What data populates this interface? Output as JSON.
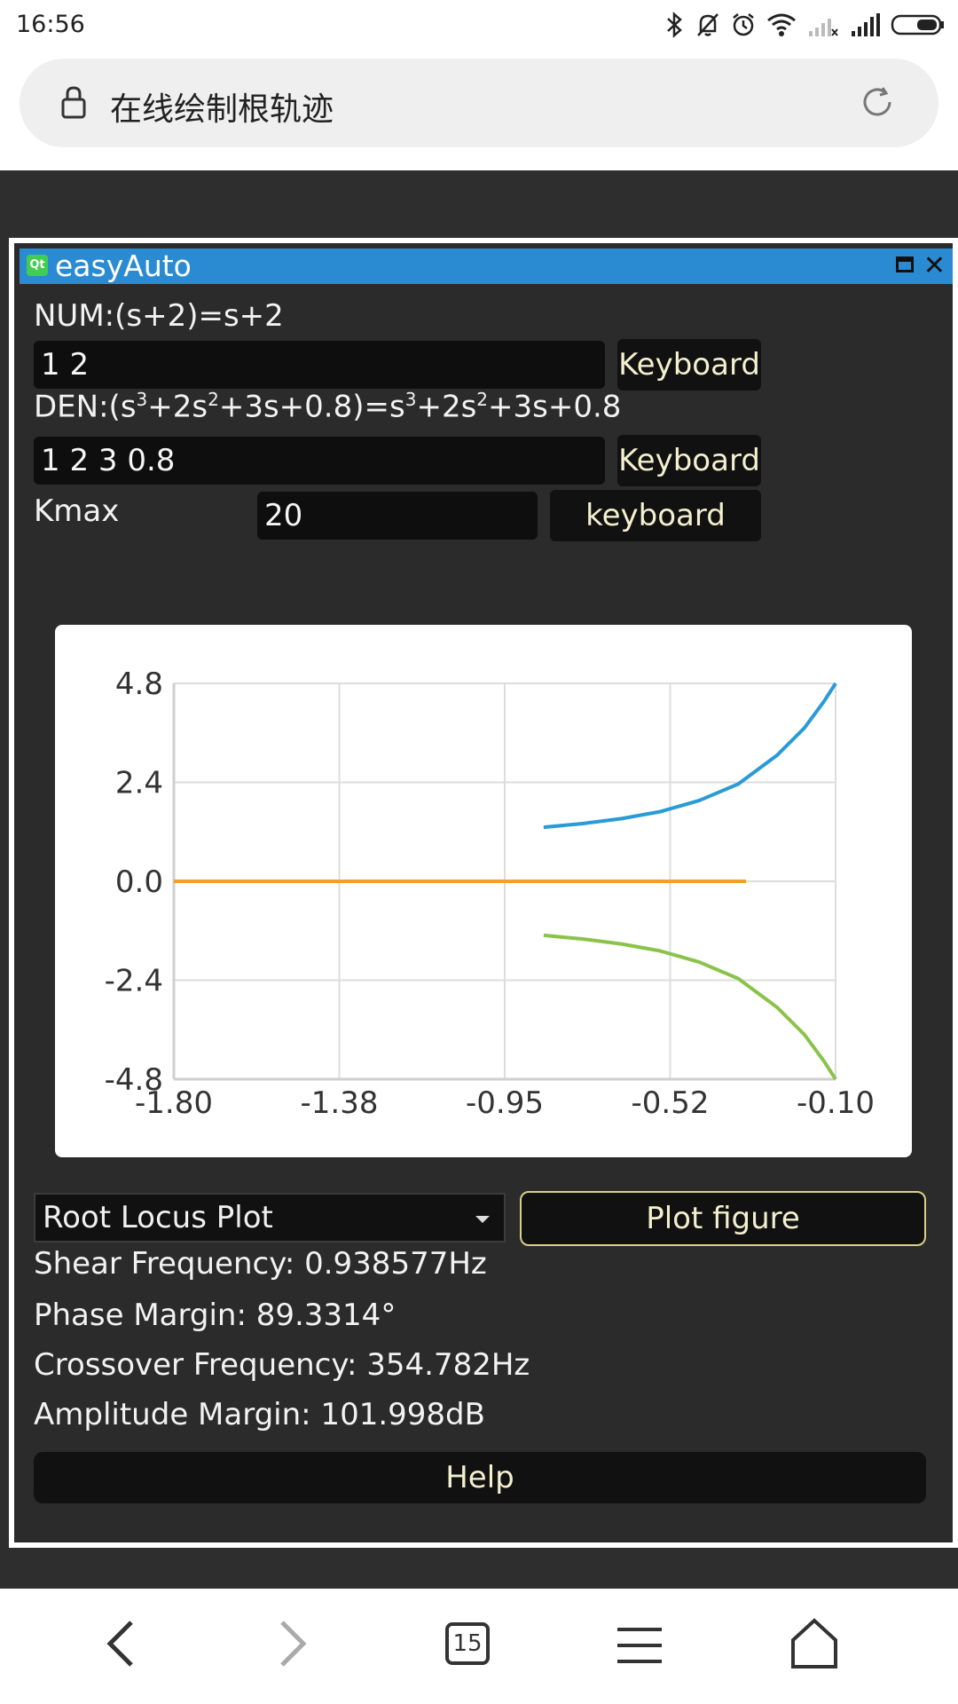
{
  "status_bar": {
    "time": "16:56"
  },
  "address_bar": {
    "url_text": "在线绘制根轨迹"
  },
  "window": {
    "title": "easyAuto"
  },
  "form": {
    "num_label": "NUM:(s+2)=s+2",
    "num_value": "1 2",
    "num_keyboard": "Keyboard",
    "den_label_parts": [
      "DEN:(s",
      "3",
      "+2s",
      "2",
      "+3s+0.8)=s",
      "3",
      "+2s",
      "2",
      "+3s+0.8"
    ],
    "den_value": "1 2 3 0.8",
    "den_keyboard": "Keyboard",
    "kmax_label": "Kmax",
    "kmax_value": "20",
    "kmax_keyboard": "keyboard"
  },
  "chart_data": {
    "type": "line",
    "title": "",
    "xlabel": "",
    "ylabel": "",
    "xlim": [
      -1.8,
      -0.1
    ],
    "ylim": [
      -4.8,
      4.8
    ],
    "x_ticks": [
      "-1.80",
      "-1.38",
      "-0.95",
      "-0.52",
      "-0.10"
    ],
    "y_ticks": [
      "4.8",
      "2.4",
      "0.0",
      "-2.4",
      "-4.8"
    ],
    "grid": true,
    "series": [
      {
        "color": "#2a9bd6",
        "x": [
          -0.85,
          -0.75,
          -0.65,
          -0.55,
          -0.45,
          -0.35,
          -0.25,
          -0.18,
          -0.13,
          -0.1
        ],
        "y": [
          1.31,
          1.4,
          1.52,
          1.69,
          1.96,
          2.36,
          3.06,
          3.72,
          4.36,
          4.8
        ]
      },
      {
        "color": "#f0a12b",
        "x": [
          -1.8,
          -0.33
        ],
        "y": [
          0.0,
          0.0
        ]
      },
      {
        "color": "#8bc34a",
        "x": [
          -0.85,
          -0.75,
          -0.65,
          -0.55,
          -0.45,
          -0.35,
          -0.25,
          -0.18,
          -0.13,
          -0.1
        ],
        "y": [
          -1.31,
          -1.4,
          -1.52,
          -1.69,
          -1.96,
          -2.36,
          -3.06,
          -3.72,
          -4.36,
          -4.8
        ]
      }
    ]
  },
  "controls": {
    "plot_type": "Root Locus Plot",
    "plot_button": "Plot figure",
    "help_button": "Help"
  },
  "results": {
    "shear_frequency": "Shear Frequency: 0.938577Hz",
    "phase_margin": "Phase Margin: 89.3314°",
    "crossover_frequency": "Crossover Frequency: 354.782Hz",
    "amplitude_margin": "Amplitude Margin: 101.998dB"
  },
  "nav": {
    "tab_count": "15"
  }
}
